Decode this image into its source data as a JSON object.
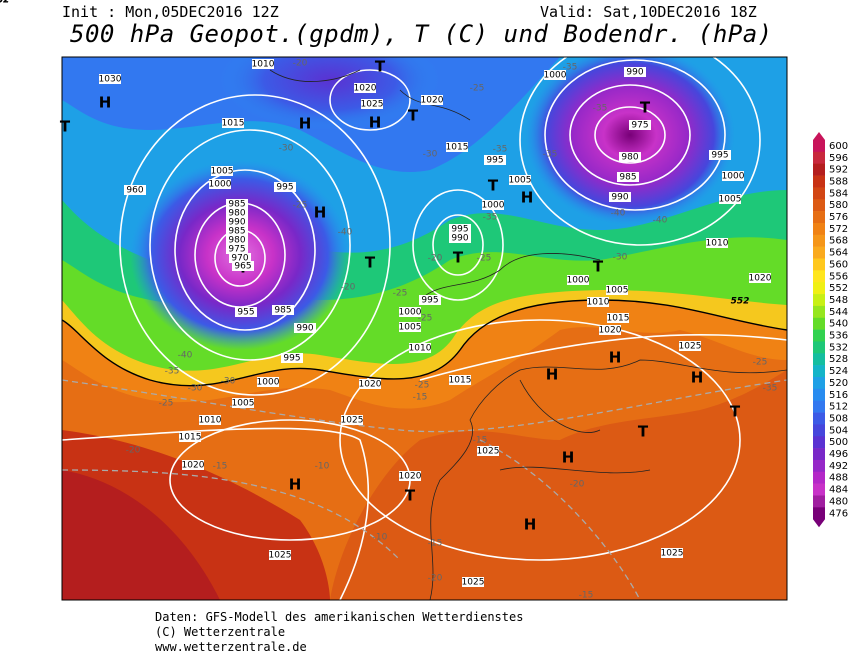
{
  "header": {
    "init": "Init : Mon,05DEC2016 12Z",
    "valid": "Valid: Sat,10DEC2016 18Z",
    "title": "500 hPa Geopot.(gpdm), T (C) und Bodendr. (hPa)"
  },
  "legend": {
    "values": [
      600,
      596,
      592,
      588,
      584,
      580,
      576,
      572,
      568,
      564,
      560,
      556,
      552,
      548,
      544,
      540,
      536,
      532,
      528,
      524,
      520,
      516,
      512,
      508,
      504,
      500,
      496,
      492,
      488,
      484,
      480,
      476
    ],
    "colors": [
      "#c8145a",
      "#c8283c",
      "#b41e1e",
      "#c83214",
      "#d24614",
      "#dc5a14",
      "#e66e14",
      "#f08214",
      "#f59619",
      "#faaa1e",
      "#ffc81e",
      "#ffe61e",
      "#f0f014",
      "#c8f014",
      "#96e61e",
      "#64dc28",
      "#32d250",
      "#1ec878",
      "#14bea0",
      "#14b4c8",
      "#1ea0e6",
      "#288cf0",
      "#3278f0",
      "#3c5ae6",
      "#4646dc",
      "#5a32d2",
      "#7828c8",
      "#9628c8",
      "#b428c8",
      "#c832c8",
      "#a01ea0",
      "#780078"
    ]
  },
  "map": {
    "labels": [
      "H",
      "T",
      "H",
      "H",
      "T",
      "T",
      "T",
      "H",
      "T",
      "T",
      "H",
      "T",
      "T",
      "T",
      "H",
      "H",
      "H",
      "T",
      "H",
      "T",
      "H",
      "T",
      "H",
      "1030",
      "1015",
      "1005",
      "1000",
      "995",
      "985",
      "990",
      "995",
      "1000",
      "1005",
      "1010",
      "1015",
      "1020",
      "1025",
      "1020",
      "1015",
      "1010",
      "1005",
      "1000",
      "995",
      "1025",
      "1020",
      "1025",
      "1025",
      "1025",
      "1025",
      "1020",
      "1015",
      "1010",
      "1005",
      "1000",
      "1020",
      "1010",
      "1005",
      "1000",
      "995",
      "985",
      "980",
      "975",
      "990",
      "1000",
      "990",
      "1020",
      "1025",
      "1020",
      "1015",
      "1005",
      "1000",
      "995",
      "1010",
      "995",
      "990",
      "985",
      "980",
      "990",
      "985",
      "980",
      "975",
      "970",
      "965",
      "960",
      "955",
      "-40",
      "-35",
      "-30",
      "-25",
      "-20",
      "-15",
      "-10",
      "-10",
      "-15",
      "-20",
      "-15",
      "-15",
      "-20",
      "-15",
      "-20",
      "-25",
      "-20",
      "-25",
      "-25",
      "-25",
      "-30",
      "-30",
      "-35",
      "-35",
      "-35",
      "-40",
      "-40",
      "-30",
      "-35",
      "-25",
      "-20",
      "-25",
      "-35",
      "-35",
      "-40",
      "-30",
      "-25",
      "552",
      "552",
      "552"
    ]
  },
  "footer": [
    "Daten: GFS-Modell des amerikanischen Wetterdienstes",
    "(C) Wetterzentrale",
    "www.wetterzentrale.de"
  ]
}
